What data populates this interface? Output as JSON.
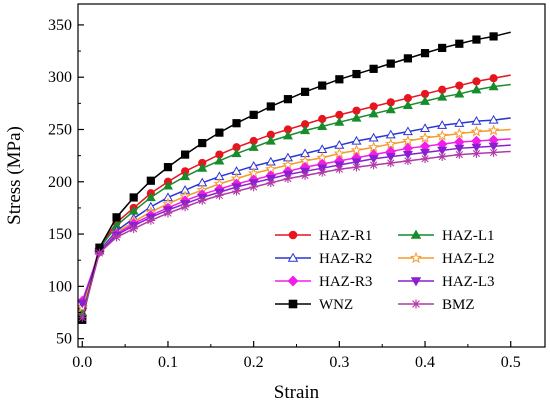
{
  "chart_data": {
    "type": "line",
    "title": "",
    "xlabel": "Strain",
    "ylabel": "Stress (MPa)",
    "xlim": [
      -0.005,
      0.54
    ],
    "ylim": [
      42,
      370
    ],
    "xticks": [
      0.0,
      0.1,
      0.2,
      0.3,
      0.4,
      0.5
    ],
    "xtick_labels": [
      "0.0",
      "0.1",
      "0.2",
      "0.3",
      "0.4",
      "0.5"
    ],
    "yticks": [
      50,
      100,
      150,
      200,
      250,
      300,
      350
    ],
    "ytick_labels": [
      "50",
      "100",
      "150",
      "200",
      "250",
      "300",
      "350"
    ],
    "grid": false,
    "legend_position": "bottom-right",
    "x": [
      0,
      0.02,
      0.04,
      0.06,
      0.08,
      0.1,
      0.12,
      0.14,
      0.16,
      0.18,
      0.2,
      0.22,
      0.24,
      0.26,
      0.28,
      0.3,
      0.32,
      0.34,
      0.36,
      0.38,
      0.4,
      0.42,
      0.44,
      0.46,
      0.48
    ],
    "x_end": 0.5,
    "series": [
      {
        "name": "HAZ-R1",
        "color": "#e8141e",
        "marker": "circle",
        "fill": true,
        "values": [
          78,
          137,
          161,
          175,
          189,
          200,
          210,
          218,
          226,
          233,
          239,
          245,
          250,
          255,
          260,
          264,
          268,
          272,
          276,
          280,
          284,
          288,
          292,
          296,
          299
        ],
        "end_value": 302
      },
      {
        "name": "HAZ-L1",
        "color": "#168c2a",
        "marker": "triangle-up",
        "fill": true,
        "values": [
          75,
          136,
          158,
          172,
          185,
          196,
          205,
          213,
          220,
          227,
          233,
          239,
          244,
          249,
          253,
          257,
          261,
          265,
          269,
          273,
          277,
          281,
          284,
          288,
          291
        ],
        "end_value": 293
      },
      {
        "name": "HAZ-R2",
        "color": "#2a35d6",
        "marker": "triangle-up",
        "fill": false,
        "values": [
          82,
          134,
          153,
          165,
          176,
          185,
          192,
          199,
          205,
          210,
          215,
          219,
          223,
          227,
          231,
          235,
          239,
          242,
          245,
          248,
          251,
          254,
          256,
          258,
          259
        ],
        "end_value": 261
      },
      {
        "name": "HAZ-L2",
        "color": "#f59a2c",
        "marker": "star",
        "fill": false,
        "values": [
          80,
          133,
          151,
          162,
          171,
          179,
          186,
          192,
          198,
          203,
          208,
          212,
          216,
          220,
          223,
          227,
          230,
          233,
          236,
          239,
          242,
          244,
          246,
          248,
          249
        ],
        "end_value": 250
      },
      {
        "name": "HAZ-R3",
        "color": "#f21ee8",
        "marker": "diamond",
        "fill": true,
        "values": [
          86,
          133,
          150,
          160,
          168,
          175,
          182,
          188,
          193,
          198,
          202,
          206,
          210,
          214,
          217,
          220,
          223,
          226,
          229,
          232,
          234,
          236,
          238,
          239,
          240
        ],
        "end_value": 241
      },
      {
        "name": "HAZ-L3",
        "color": "#8a1fd2",
        "marker": "triangle-down",
        "fill": true,
        "values": [
          84,
          133,
          149,
          158,
          166,
          173,
          179,
          185,
          190,
          195,
          199,
          203,
          207,
          210,
          213,
          216,
          219,
          222,
          224,
          226,
          228,
          230,
          232,
          233,
          234
        ],
        "end_value": 235
      },
      {
        "name": "WNZ",
        "color": "#000000",
        "marker": "square",
        "fill": true,
        "values": [
          68,
          137,
          166,
          185,
          201,
          214,
          226,
          237,
          247,
          256,
          264,
          272,
          279,
          286,
          292,
          298,
          303,
          308,
          313,
          318,
          323,
          328,
          332,
          336,
          339
        ],
        "end_value": 343
      },
      {
        "name": "BMZ",
        "color": "#b03aa8",
        "marker": "asterisk",
        "fill": false,
        "values": [
          70,
          132,
          147,
          155,
          163,
          170,
          176,
          182,
          187,
          191,
          195,
          199,
          203,
          206,
          209,
          212,
          214,
          216,
          218,
          220,
          222,
          224,
          226,
          227,
          228
        ],
        "end_value": 229
      }
    ]
  }
}
